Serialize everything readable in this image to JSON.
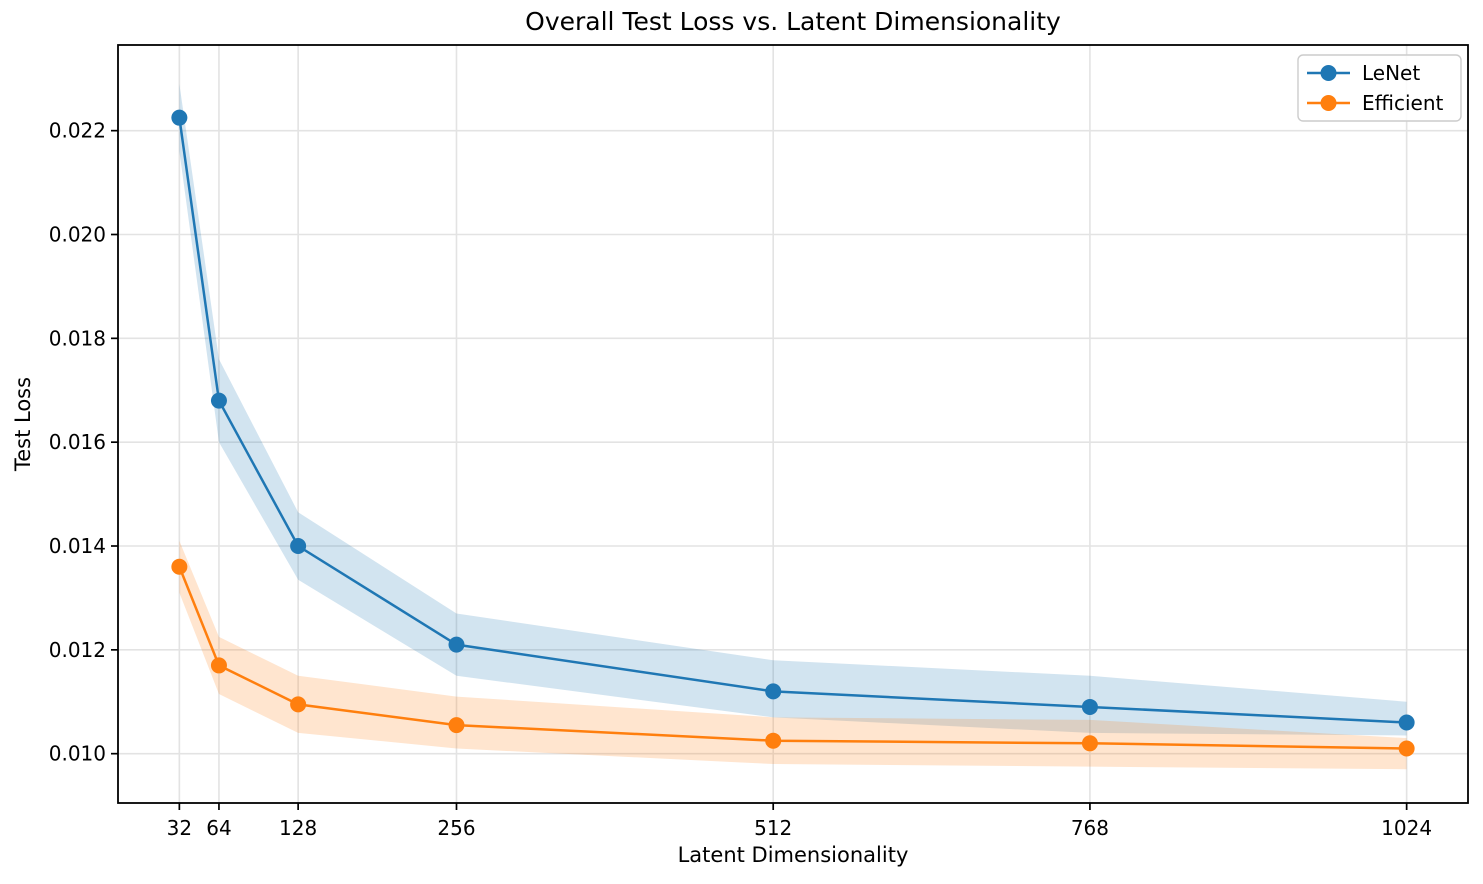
{
  "chart_data": {
    "type": "line",
    "title": "Overall Test Loss vs. Latent Dimensionality",
    "xlabel": "Latent Dimensionality",
    "ylabel": "Test Loss",
    "x": [
      32,
      64,
      128,
      256,
      512,
      768,
      1024
    ],
    "series": [
      {
        "name": "LeNet",
        "color": "#1f77b4",
        "values": [
          0.02225,
          0.0168,
          0.014,
          0.0121,
          0.0112,
          0.0109,
          0.0106
        ],
        "band_upper": [
          0.0229,
          0.0176,
          0.01465,
          0.0127,
          0.0118,
          0.0115,
          0.011
        ],
        "band_lower": [
          0.0216,
          0.016,
          0.01335,
          0.0115,
          0.0107,
          0.0104,
          0.01035
        ]
      },
      {
        "name": "Efficient",
        "color": "#ff7f0e",
        "values": [
          0.0136,
          0.0117,
          0.01095,
          0.01055,
          0.01025,
          0.0102,
          0.0101
        ],
        "band_upper": [
          0.0141,
          0.01225,
          0.0115,
          0.0111,
          0.0107,
          0.01065,
          0.0103
        ],
        "band_lower": [
          0.0131,
          0.01115,
          0.0104,
          0.0101,
          0.0098,
          0.00975,
          0.0097
        ]
      }
    ],
    "xticks": [
      32,
      64,
      128,
      256,
      512,
      768,
      1024
    ],
    "yticks": [
      0.01,
      0.012,
      0.014,
      0.016,
      0.018,
      0.02,
      0.022
    ],
    "xlim": [
      -17.6,
      1073.6
    ],
    "ylim": [
      0.00905,
      0.02365
    ],
    "grid": true,
    "grid_color": "#e3e3e3",
    "spine_color": "#000000",
    "band_opacity": 0.2,
    "line_width": 2.5,
    "marker_size": 8,
    "legend": {
      "position": "upper right"
    }
  }
}
